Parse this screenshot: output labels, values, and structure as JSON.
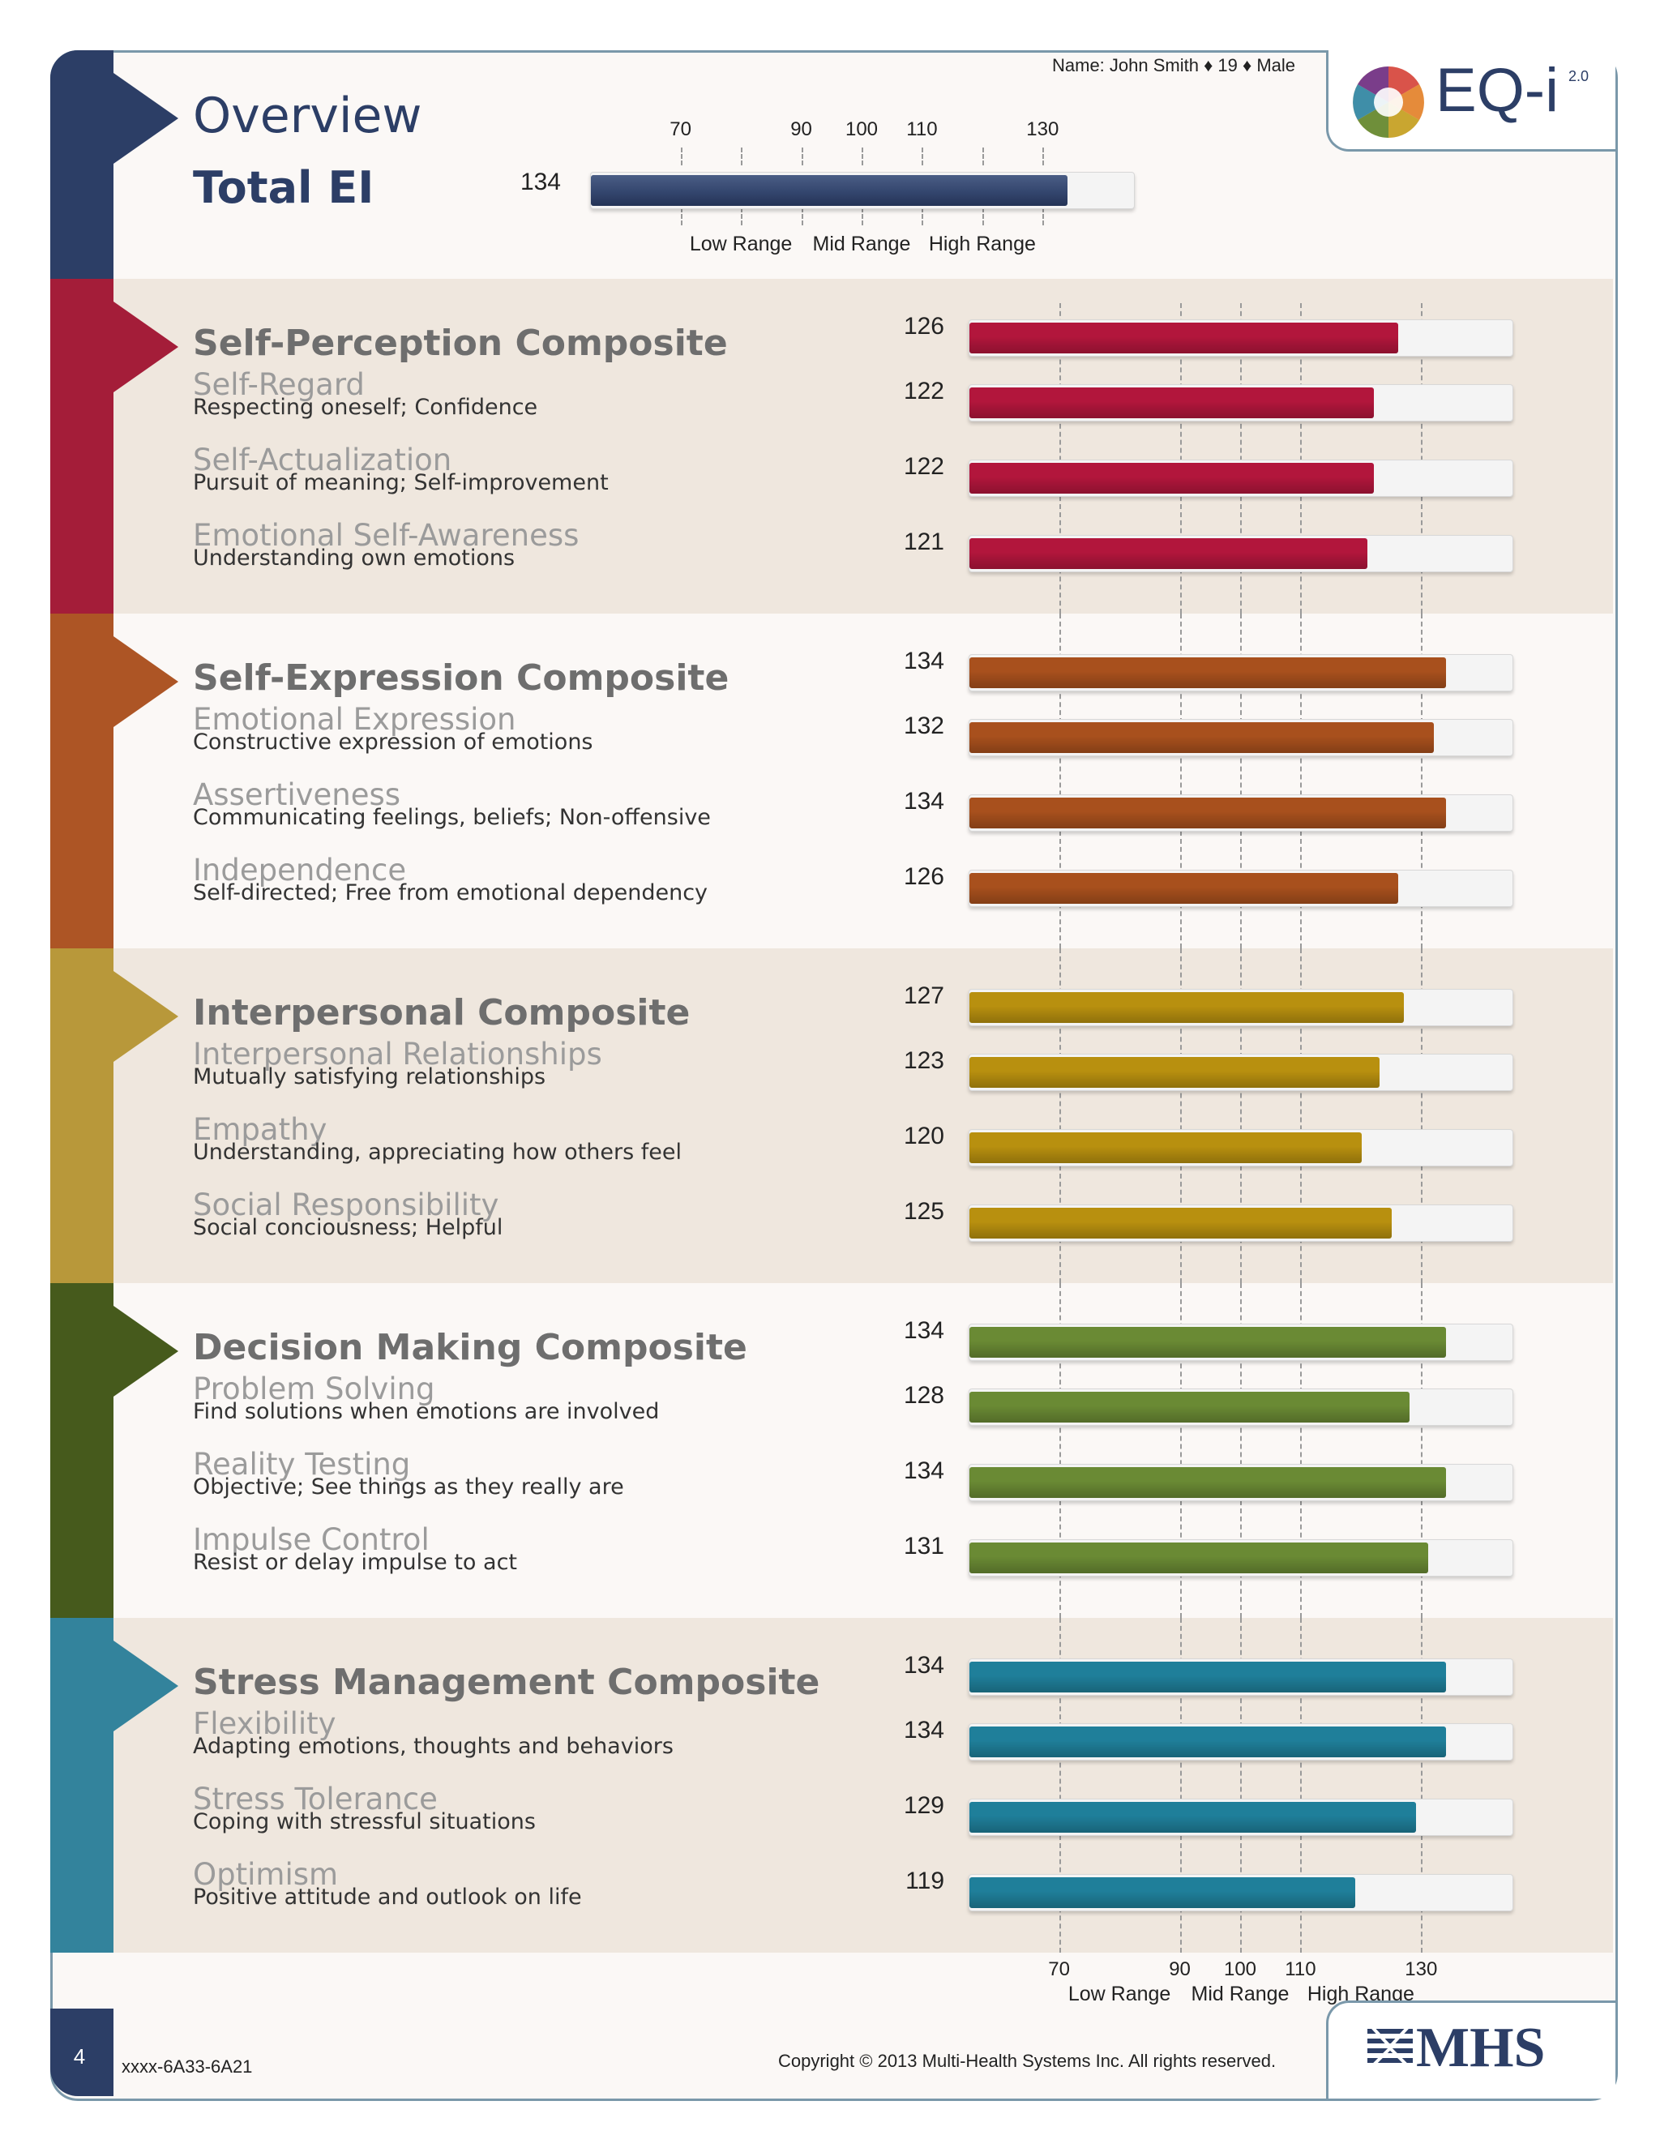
{
  "header": {
    "title": "Overview",
    "total_label": "Total EI",
    "total_score": 134,
    "respondent": "Name: John Smith ♦ 19 ♦ Male",
    "logo_text": "EQ-i",
    "logo_version": "2.0"
  },
  "scale": {
    "min": 55,
    "max": 145,
    "tick_values": [
      70,
      80,
      90,
      100,
      110,
      120,
      130
    ],
    "label_values": [
      70,
      90,
      100,
      110,
      130
    ],
    "labels": [
      "70",
      "90",
      "100",
      "110",
      "130"
    ],
    "range_labels": [
      "Low Range",
      "Mid Range",
      "High Range"
    ]
  },
  "composites": [
    {
      "title": "Self-Perception Composite",
      "score": 126,
      "color": "#a41d39",
      "bar_color": "#b2163c",
      "subscales": [
        {
          "name": "Self-Regard",
          "desc": "Respecting oneself; Confidence",
          "score": 122
        },
        {
          "name": "Self-Actualization",
          "desc": "Pursuit of meaning; Self-improvement",
          "score": 122
        },
        {
          "name": "Emotional Self-Awareness",
          "desc": "Understanding own emotions",
          "score": 121
        }
      ]
    },
    {
      "title": "Self-Expression Composite",
      "score": 134,
      "color": "#ad5525",
      "bar_color": "#a8501d",
      "subscales": [
        {
          "name": "Emotional Expression",
          "desc": "Constructive expression of emotions",
          "score": 132
        },
        {
          "name": "Assertiveness",
          "desc": "Communicating feelings, beliefs; Non-offensive",
          "score": 134
        },
        {
          "name": "Independence",
          "desc": "Self-directed; Free from emotional dependency",
          "score": 126
        }
      ]
    },
    {
      "title": "Interpersonal Composite",
      "score": 127,
      "color": "#b8983a",
      "bar_color": "#b8900f",
      "subscales": [
        {
          "name": "Interpersonal Relationships",
          "desc": "Mutually satisfying relationships",
          "score": 123
        },
        {
          "name": "Empathy",
          "desc": "Understanding, appreciating how others feel",
          "score": 120
        },
        {
          "name": "Social Responsibility",
          "desc": "Social conciousness; Helpful",
          "score": 125
        }
      ]
    },
    {
      "title": "Decision Making Composite",
      "score": 134,
      "color": "#465a1c",
      "bar_color": "#6a8a34",
      "subscales": [
        {
          "name": "Problem Solving",
          "desc": "Find solutions when emotions are involved",
          "score": 128
        },
        {
          "name": "Reality Testing",
          "desc": "Objective; See things as they really are",
          "score": 134
        },
        {
          "name": "Impulse Control",
          "desc": "Resist or delay impulse to act",
          "score": 131
        }
      ]
    },
    {
      "title": "Stress Management Composite",
      "score": 134,
      "color": "#33839c",
      "bar_color": "#1f7f9a",
      "subscales": [
        {
          "name": "Flexibility",
          "desc": "Adapting emotions, thoughts and behaviors",
          "score": 134
        },
        {
          "name": "Stress Tolerance",
          "desc": "Coping with stressful situations",
          "score": 129
        },
        {
          "name": "Optimism",
          "desc": "Positive attitude and outlook on life",
          "score": 119
        }
      ]
    }
  ],
  "footer": {
    "page_number": "4",
    "code": "xxxx-6A33-6A21",
    "copyright": "Copyright © 2013 Multi-Health Systems Inc. All rights reserved.",
    "publisher": "MHS"
  },
  "colors": {
    "navy": "#2c3e66",
    "total_bar": "#34466e",
    "band_shade": "#efe7de",
    "border": "#7a98aa"
  }
}
